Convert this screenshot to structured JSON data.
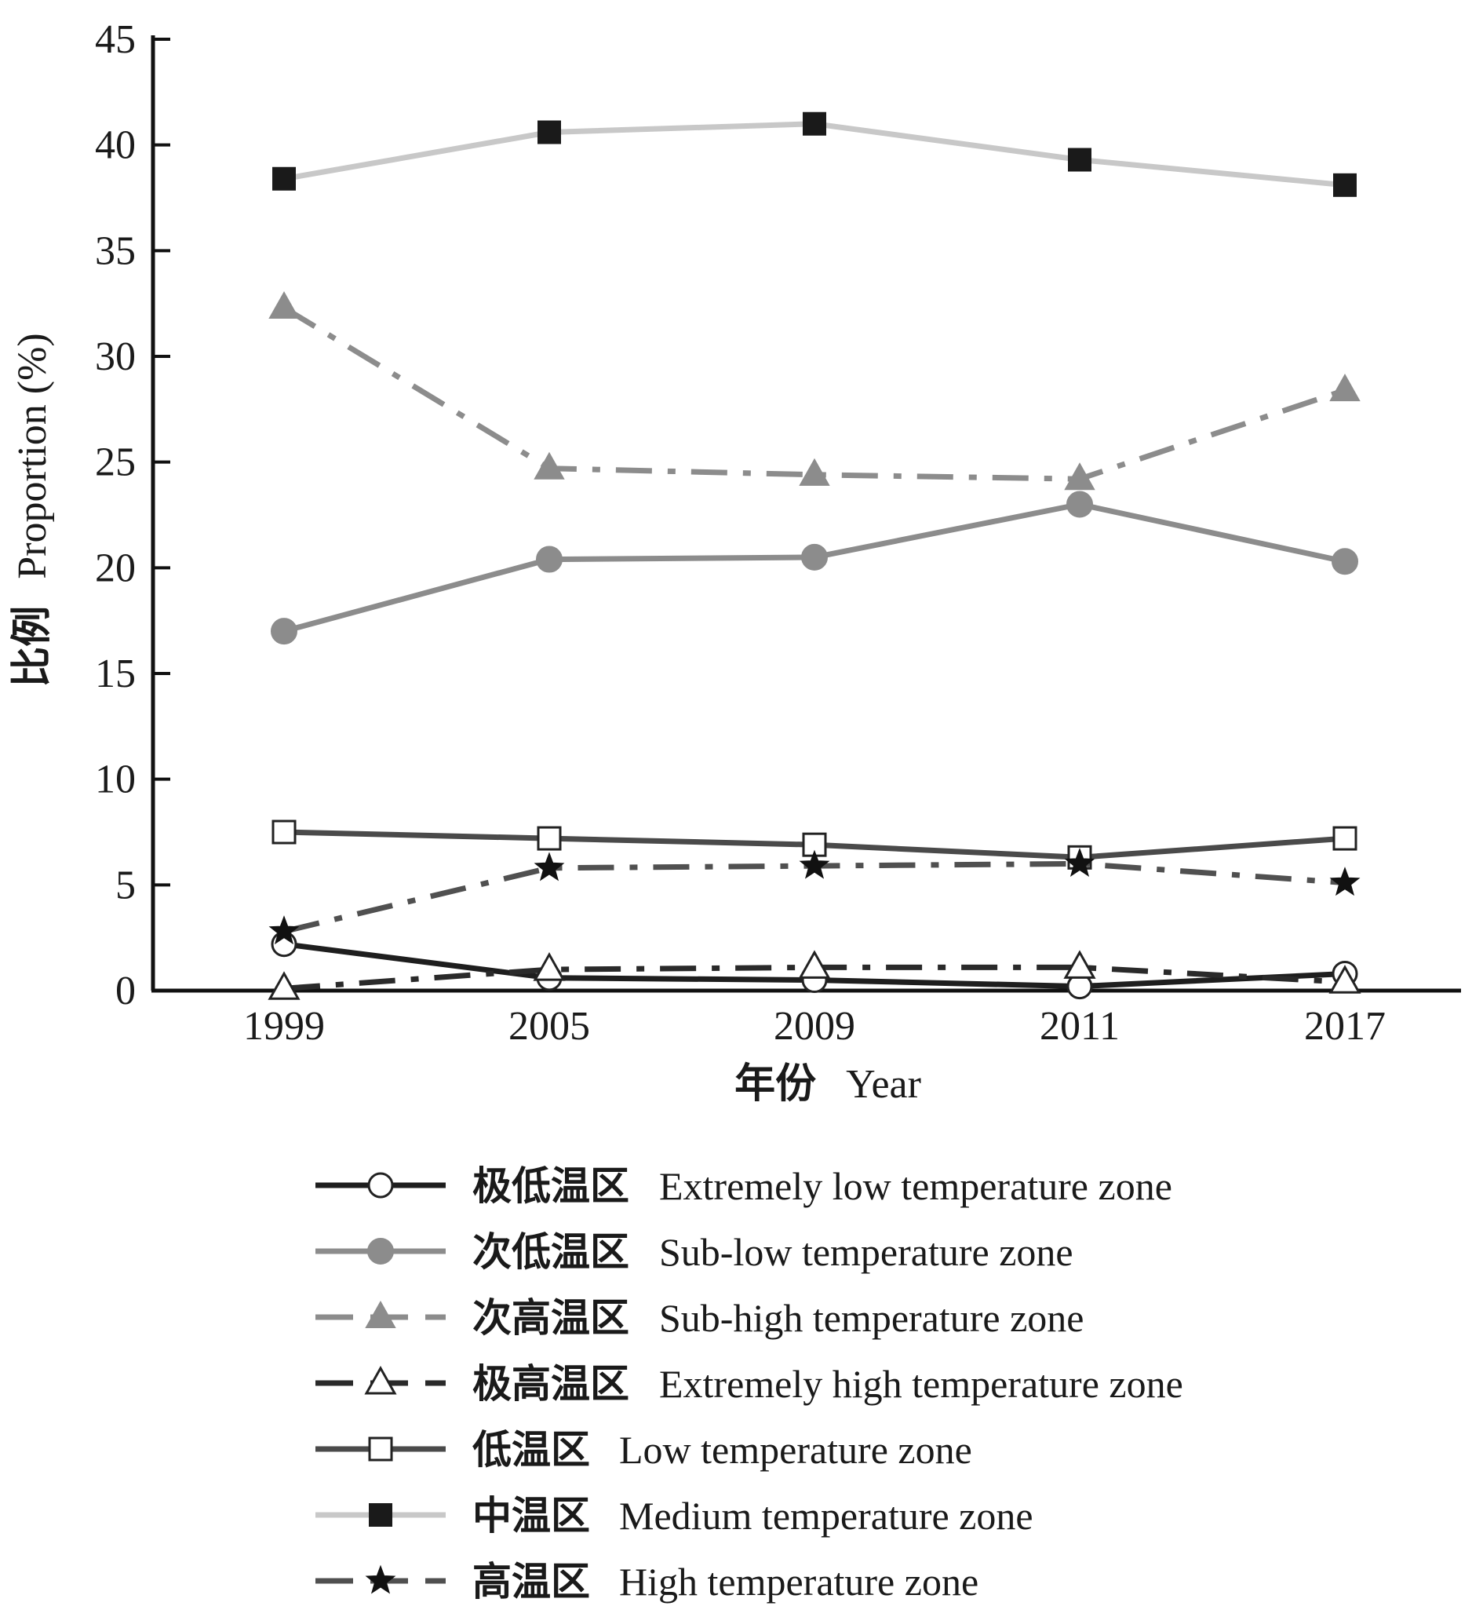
{
  "chart_data": {
    "type": "line",
    "xlabel_cn": "年份",
    "xlabel_en": "Year",
    "ylabel_cn": "比例",
    "ylabel_en": "Proportion (%)",
    "categories": [
      "1999",
      "2005",
      "2009",
      "2011",
      "2017"
    ],
    "ylim": [
      0,
      45
    ],
    "yticks": [
      0,
      5,
      10,
      15,
      20,
      25,
      30,
      35,
      40,
      45
    ],
    "grid": false,
    "legend_position": "bottom",
    "series": [
      {
        "name_cn": "极低温区",
        "name_en": "Extremely low temperature zone",
        "values": [
          2.2,
          0.6,
          0.5,
          0.2,
          0.8
        ],
        "color": "#1e1e1e",
        "dash": "solid",
        "marker": "circle-open"
      },
      {
        "name_cn": "次低温区",
        "name_en": "Sub-low temperature zone",
        "values": [
          17.0,
          20.4,
          20.5,
          23.0,
          20.3
        ],
        "color": "#8c8c8c",
        "dash": "solid",
        "marker": "circle-filled"
      },
      {
        "name_cn": "次高温区",
        "name_en": "Sub-high temperature zone",
        "values": [
          32.3,
          24.7,
          24.4,
          24.2,
          28.4
        ],
        "color": "#8c8c8c",
        "dash": "dash-dot",
        "marker": "triangle-filled"
      },
      {
        "name_cn": "极高温区",
        "name_en": "Extremely high temperature zone",
        "values": [
          0.1,
          1.0,
          1.1,
          1.1,
          0.4
        ],
        "color": "#2a2a2a",
        "dash": "dash-dot",
        "marker": "triangle-open"
      },
      {
        "name_cn": "低温区",
        "name_en": "Low temperature zone",
        "values": [
          7.5,
          7.2,
          6.9,
          6.3,
          7.2
        ],
        "color": "#4a4a4a",
        "dash": "solid",
        "marker": "square-open"
      },
      {
        "name_cn": "中温区",
        "name_en": "Medium temperature zone",
        "values": [
          38.4,
          40.6,
          41.0,
          39.3,
          38.1
        ],
        "color": "#c8c8c8",
        "dash": "solid",
        "marker": "square-filled"
      },
      {
        "name_cn": "高温区",
        "name_en": "High temperature zone",
        "values": [
          2.8,
          5.8,
          5.9,
          6.0,
          5.1
        ],
        "color": "#505050",
        "dash": "dash-dot",
        "marker": "star-filled"
      }
    ]
  }
}
